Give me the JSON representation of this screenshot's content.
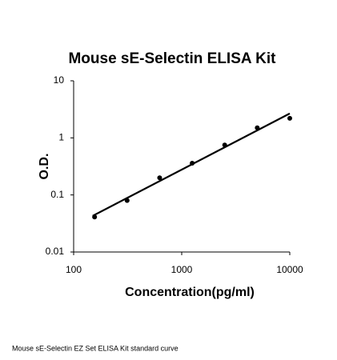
{
  "chart_data": {
    "type": "scatter",
    "title": "Mouse sE-Selectin ELISA Kit",
    "x_label": "Concentration(pg/ml)",
    "y_label": "O.D.",
    "caption": "Mouse sE-Selectin EZ Set ELISA Kit standard curve",
    "x_log": true,
    "y_log": true,
    "xlim": [
      100,
      10000
    ],
    "ylim": [
      0.01,
      10
    ],
    "xticks": [
      100,
      1000,
      10000
    ],
    "yticks": [
      0.01,
      0.1,
      1,
      10
    ],
    "series": [
      {
        "style": "points",
        "color": "#000000",
        "x": [
          156.25,
          312.5,
          625,
          1250,
          2500,
          5000,
          10000
        ],
        "values": [
          0.041,
          0.08,
          0.2,
          0.36,
          0.75,
          1.5,
          2.2
        ]
      },
      {
        "style": "line",
        "color": "#000000",
        "x": [
          150,
          10000
        ],
        "values": [
          0.043,
          2.67
        ]
      }
    ]
  }
}
